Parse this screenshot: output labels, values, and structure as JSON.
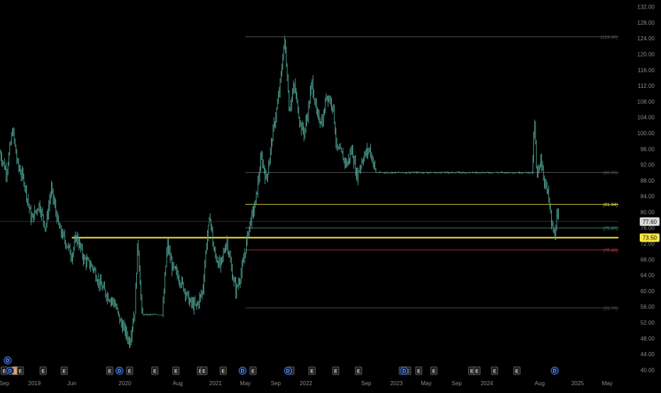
{
  "chart_data": {
    "type": "candlestick",
    "y_axis": {
      "range": [
        39,
        133
      ],
      "ticks": [
        "132.00",
        "128.00",
        "124.00",
        "120.00",
        "116.00",
        "112.00",
        "108.00",
        "104.00",
        "100.00",
        "96.00",
        "92.00",
        "88.00",
        "84.00",
        "80.00",
        "76.00",
        "72.00",
        "68.00",
        "64.00",
        "60.00",
        "56.00",
        "52.00",
        "48.00",
        "44.00",
        "40.00"
      ]
    },
    "x_axis": {
      "range": [
        "2018-08-15",
        "2025-06-15"
      ],
      "ticks": [
        {
          "label": "Sep",
          "date": "2018-09-01"
        },
        {
          "label": "2019",
          "date": "2019-01-01"
        },
        {
          "label": "Jun",
          "date": "2019-06-01"
        },
        {
          "label": "2020",
          "date": "2020-01-01"
        },
        {
          "label": "Aug",
          "date": "2020-08-01"
        },
        {
          "label": "2021",
          "date": "2021-01-01"
        },
        {
          "label": "May",
          "date": "2021-05-01"
        },
        {
          "label": "Sep",
          "date": "2021-09-01"
        },
        {
          "label": "2022",
          "date": "2022-01-01"
        },
        {
          "label": "Sep",
          "date": "2022-09-01"
        },
        {
          "label": "2023",
          "date": "2023-01-01"
        },
        {
          "label": "May",
          "date": "2023-05-01"
        },
        {
          "label": "Sep",
          "date": "2023-09-01"
        },
        {
          "label": "2024",
          "date": "2024-01-01"
        },
        {
          "label": "Aug",
          "date": "2024-08-01"
        },
        {
          "label": "2025",
          "date": "2025-01-01"
        },
        {
          "label": "May",
          "date": "2025-05-01"
        }
      ]
    },
    "price_path": [
      [
        "2018-08-15",
        95
      ],
      [
        "2018-09-10",
        90
      ],
      [
        "2018-10-05",
        101
      ],
      [
        "2018-10-25",
        92
      ],
      [
        "2018-11-20",
        88
      ],
      [
        "2018-12-20",
        78
      ],
      [
        "2019-01-20",
        82
      ],
      [
        "2019-02-15",
        76
      ],
      [
        "2019-03-10",
        86
      ],
      [
        "2019-04-10",
        76
      ],
      [
        "2019-05-10",
        72
      ],
      [
        "2019-06-01",
        69
      ],
      [
        "2019-06-20",
        74
      ],
      [
        "2019-07-20",
        68
      ],
      [
        "2019-08-25",
        66
      ],
      [
        "2019-09-20",
        62
      ],
      [
        "2019-10-20",
        59
      ],
      [
        "2019-11-20",
        57
      ],
      [
        "2019-12-15",
        52
      ],
      [
        "2020-01-01",
        50
      ],
      [
        "2020-01-20",
        47
      ],
      [
        "2020-02-01",
        52
      ],
      [
        "2020-02-10",
        55
      ],
      [
        "2020-02-22",
        73
      ],
      [
        "2020-03-10",
        54
      ],
      [
        "2020-04-10",
        54
      ],
      [
        "2020-06-01",
        54
      ],
      [
        "2020-06-20",
        72
      ],
      [
        "2020-07-10",
        66
      ],
      [
        "2020-08-01",
        64
      ],
      [
        "2020-08-25",
        61
      ],
      [
        "2020-09-20",
        57
      ],
      [
        "2020-10-15",
        56
      ],
      [
        "2020-11-10",
        60
      ],
      [
        "2020-11-25",
        72
      ],
      [
        "2020-12-10",
        79
      ],
      [
        "2020-12-25",
        70
      ],
      [
        "2021-01-20",
        66
      ],
      [
        "2021-02-15",
        73
      ],
      [
        "2021-03-10",
        64
      ],
      [
        "2021-03-25",
        60
      ],
      [
        "2021-04-20",
        66
      ],
      [
        "2021-05-15",
        76
      ],
      [
        "2021-06-10",
        82
      ],
      [
        "2021-07-05",
        94
      ],
      [
        "2021-07-25",
        88
      ],
      [
        "2021-08-20",
        100
      ],
      [
        "2021-09-10",
        108
      ],
      [
        "2021-09-25",
        116
      ],
      [
        "2021-10-05",
        124
      ],
      [
        "2021-10-15",
        117
      ],
      [
        "2021-10-25",
        106
      ],
      [
        "2021-11-15",
        112
      ],
      [
        "2021-12-10",
        102
      ],
      [
        "2021-12-25",
        100
      ],
      [
        "2022-01-10",
        106
      ],
      [
        "2022-01-25",
        113
      ],
      [
        "2022-02-15",
        104
      ],
      [
        "2022-03-10",
        103
      ],
      [
        "2022-03-25",
        110
      ],
      [
        "2022-04-20",
        107
      ],
      [
        "2022-05-05",
        96
      ],
      [
        "2022-05-20",
        95
      ],
      [
        "2022-06-15",
        92
      ],
      [
        "2022-07-05",
        96
      ],
      [
        "2022-07-25",
        89
      ],
      [
        "2022-08-20",
        94
      ],
      [
        "2022-09-15",
        96
      ],
      [
        "2022-10-10",
        90
      ],
      [
        "2022-11-01",
        90
      ],
      [
        "2024-07-01",
        90
      ],
      [
        "2024-07-12",
        103
      ],
      [
        "2024-07-20",
        88
      ],
      [
        "2024-08-05",
        94
      ],
      [
        "2024-08-20",
        88
      ],
      [
        "2024-09-05",
        84
      ],
      [
        "2024-09-20",
        76
      ],
      [
        "2024-10-01",
        74
      ],
      [
        "2024-10-10",
        79
      ],
      [
        "2024-10-18",
        77.6
      ]
    ],
    "horizontal_levels": [
      {
        "price": 124.4,
        "label": "(124.40)",
        "color": "#5a5a5a",
        "width": 0.8,
        "start": "2021-05-01",
        "label_color": "#5a5a5a"
      },
      {
        "price": 90.05,
        "label": "(90.05)",
        "color": "#5a5a5a",
        "width": 0.8,
        "start": "2021-05-01",
        "label_color": "#5a5a5a"
      },
      {
        "price": 81.94,
        "label": "(81.94)",
        "color": "#d4c23c",
        "width": 0.9,
        "start": "2021-05-01",
        "label_color": "#f0e050"
      },
      {
        "price": 77.6,
        "label": "",
        "color": "#444444",
        "width": 0.7,
        "start": "2018-08-15",
        "label_color": "#888888"
      },
      {
        "price": 75.97,
        "label": "(75.97)",
        "color": "#2f8f7a",
        "width": 0.9,
        "start": "2021-05-01",
        "label_color": "#37a88f"
      },
      {
        "price": 73.5,
        "label": "",
        "color": "#f5e642",
        "width": 2.0,
        "start": "2019-06-01",
        "label_color": "#f5e642"
      },
      {
        "price": 70.4,
        "label": "(70.40)",
        "color": "#b8333a",
        "width": 0.9,
        "start": "2021-05-01",
        "label_color": "#d04040"
      },
      {
        "price": 55.7,
        "label": "(55.70)",
        "color": "#5a5a5a",
        "width": 0.8,
        "start": "2021-05-01",
        "label_color": "#5a5a5a"
      }
    ],
    "price_badges": [
      {
        "price": 77.6,
        "label": "77.60",
        "bg": "#d9d9d9",
        "fg": "#111111"
      },
      {
        "price": 73.5,
        "label": "73.50",
        "bg": "#f5e642",
        "fg": "#111111"
      }
    ],
    "event_markers": [
      {
        "date": "2018-09-01",
        "label": "E",
        "type": "earnings"
      },
      {
        "date": "2018-10-15",
        "label": "S",
        "type": "split"
      },
      {
        "date": "2018-11-05",
        "label": "E",
        "type": "earnings"
      },
      {
        "date": "2019-02-05",
        "label": "E",
        "type": "earnings"
      },
      {
        "date": "2019-05-01",
        "label": "E",
        "type": "earnings"
      },
      {
        "date": "2019-11-01",
        "label": "E",
        "type": "earnings"
      },
      {
        "date": "2020-01-20",
        "label": "E",
        "type": "earnings"
      },
      {
        "date": "2020-05-01",
        "label": "E",
        "type": "earnings"
      },
      {
        "date": "2020-07-25",
        "label": "E",
        "type": "earnings"
      },
      {
        "date": "2020-11-01",
        "label": "E",
        "type": "earnings"
      },
      {
        "date": "2020-11-15",
        "label": "E",
        "type": "earnings"
      },
      {
        "date": "2021-02-01",
        "label": "E",
        "type": "earnings"
      },
      {
        "date": "2021-06-01",
        "label": "E",
        "type": "earnings"
      },
      {
        "date": "2021-11-01",
        "label": "E",
        "type": "earnings"
      },
      {
        "date": "2022-01-25",
        "label": "E",
        "type": "earnings"
      },
      {
        "date": "2022-05-01",
        "label": "E",
        "type": "earnings"
      },
      {
        "date": "2022-08-01",
        "label": "E",
        "type": "earnings"
      },
      {
        "date": "2023-01-25",
        "label": "E",
        "type": "earnings"
      },
      {
        "date": "2023-02-15",
        "label": "E",
        "type": "earnings"
      },
      {
        "date": "2023-04-01",
        "label": "E",
        "type": "earnings"
      },
      {
        "date": "2023-06-01",
        "label": "E",
        "type": "earnings"
      },
      {
        "date": "2023-11-01",
        "label": "E",
        "type": "earnings"
      },
      {
        "date": "2023-11-22",
        "label": "E",
        "type": "earnings"
      },
      {
        "date": "2024-02-01",
        "label": "E",
        "type": "earnings"
      },
      {
        "date": "2024-05-01",
        "label": "E",
        "type": "earnings"
      }
    ],
    "dividend_markers": [
      {
        "date": "2018-09-15",
        "label": "D",
        "row": "upper"
      },
      {
        "date": "2018-09-25",
        "label": "D",
        "row": "lower"
      },
      {
        "date": "2019-12-10",
        "label": "D",
        "row": "lower"
      },
      {
        "date": "2021-04-20",
        "label": "D",
        "row": "lower"
      },
      {
        "date": "2021-10-20",
        "label": "D",
        "row": "lower"
      },
      {
        "date": "2023-02-01",
        "label": "D",
        "row": "lower"
      },
      {
        "date": "2024-10-01",
        "label": "D",
        "row": "lower"
      }
    ],
    "colors": {
      "background": "#000000",
      "candle": "#4fa393",
      "axis_text": "#8a8a8a",
      "event_box": "#1b1b1b",
      "dividend": "#2b62c9",
      "split": "#e8903a"
    }
  }
}
